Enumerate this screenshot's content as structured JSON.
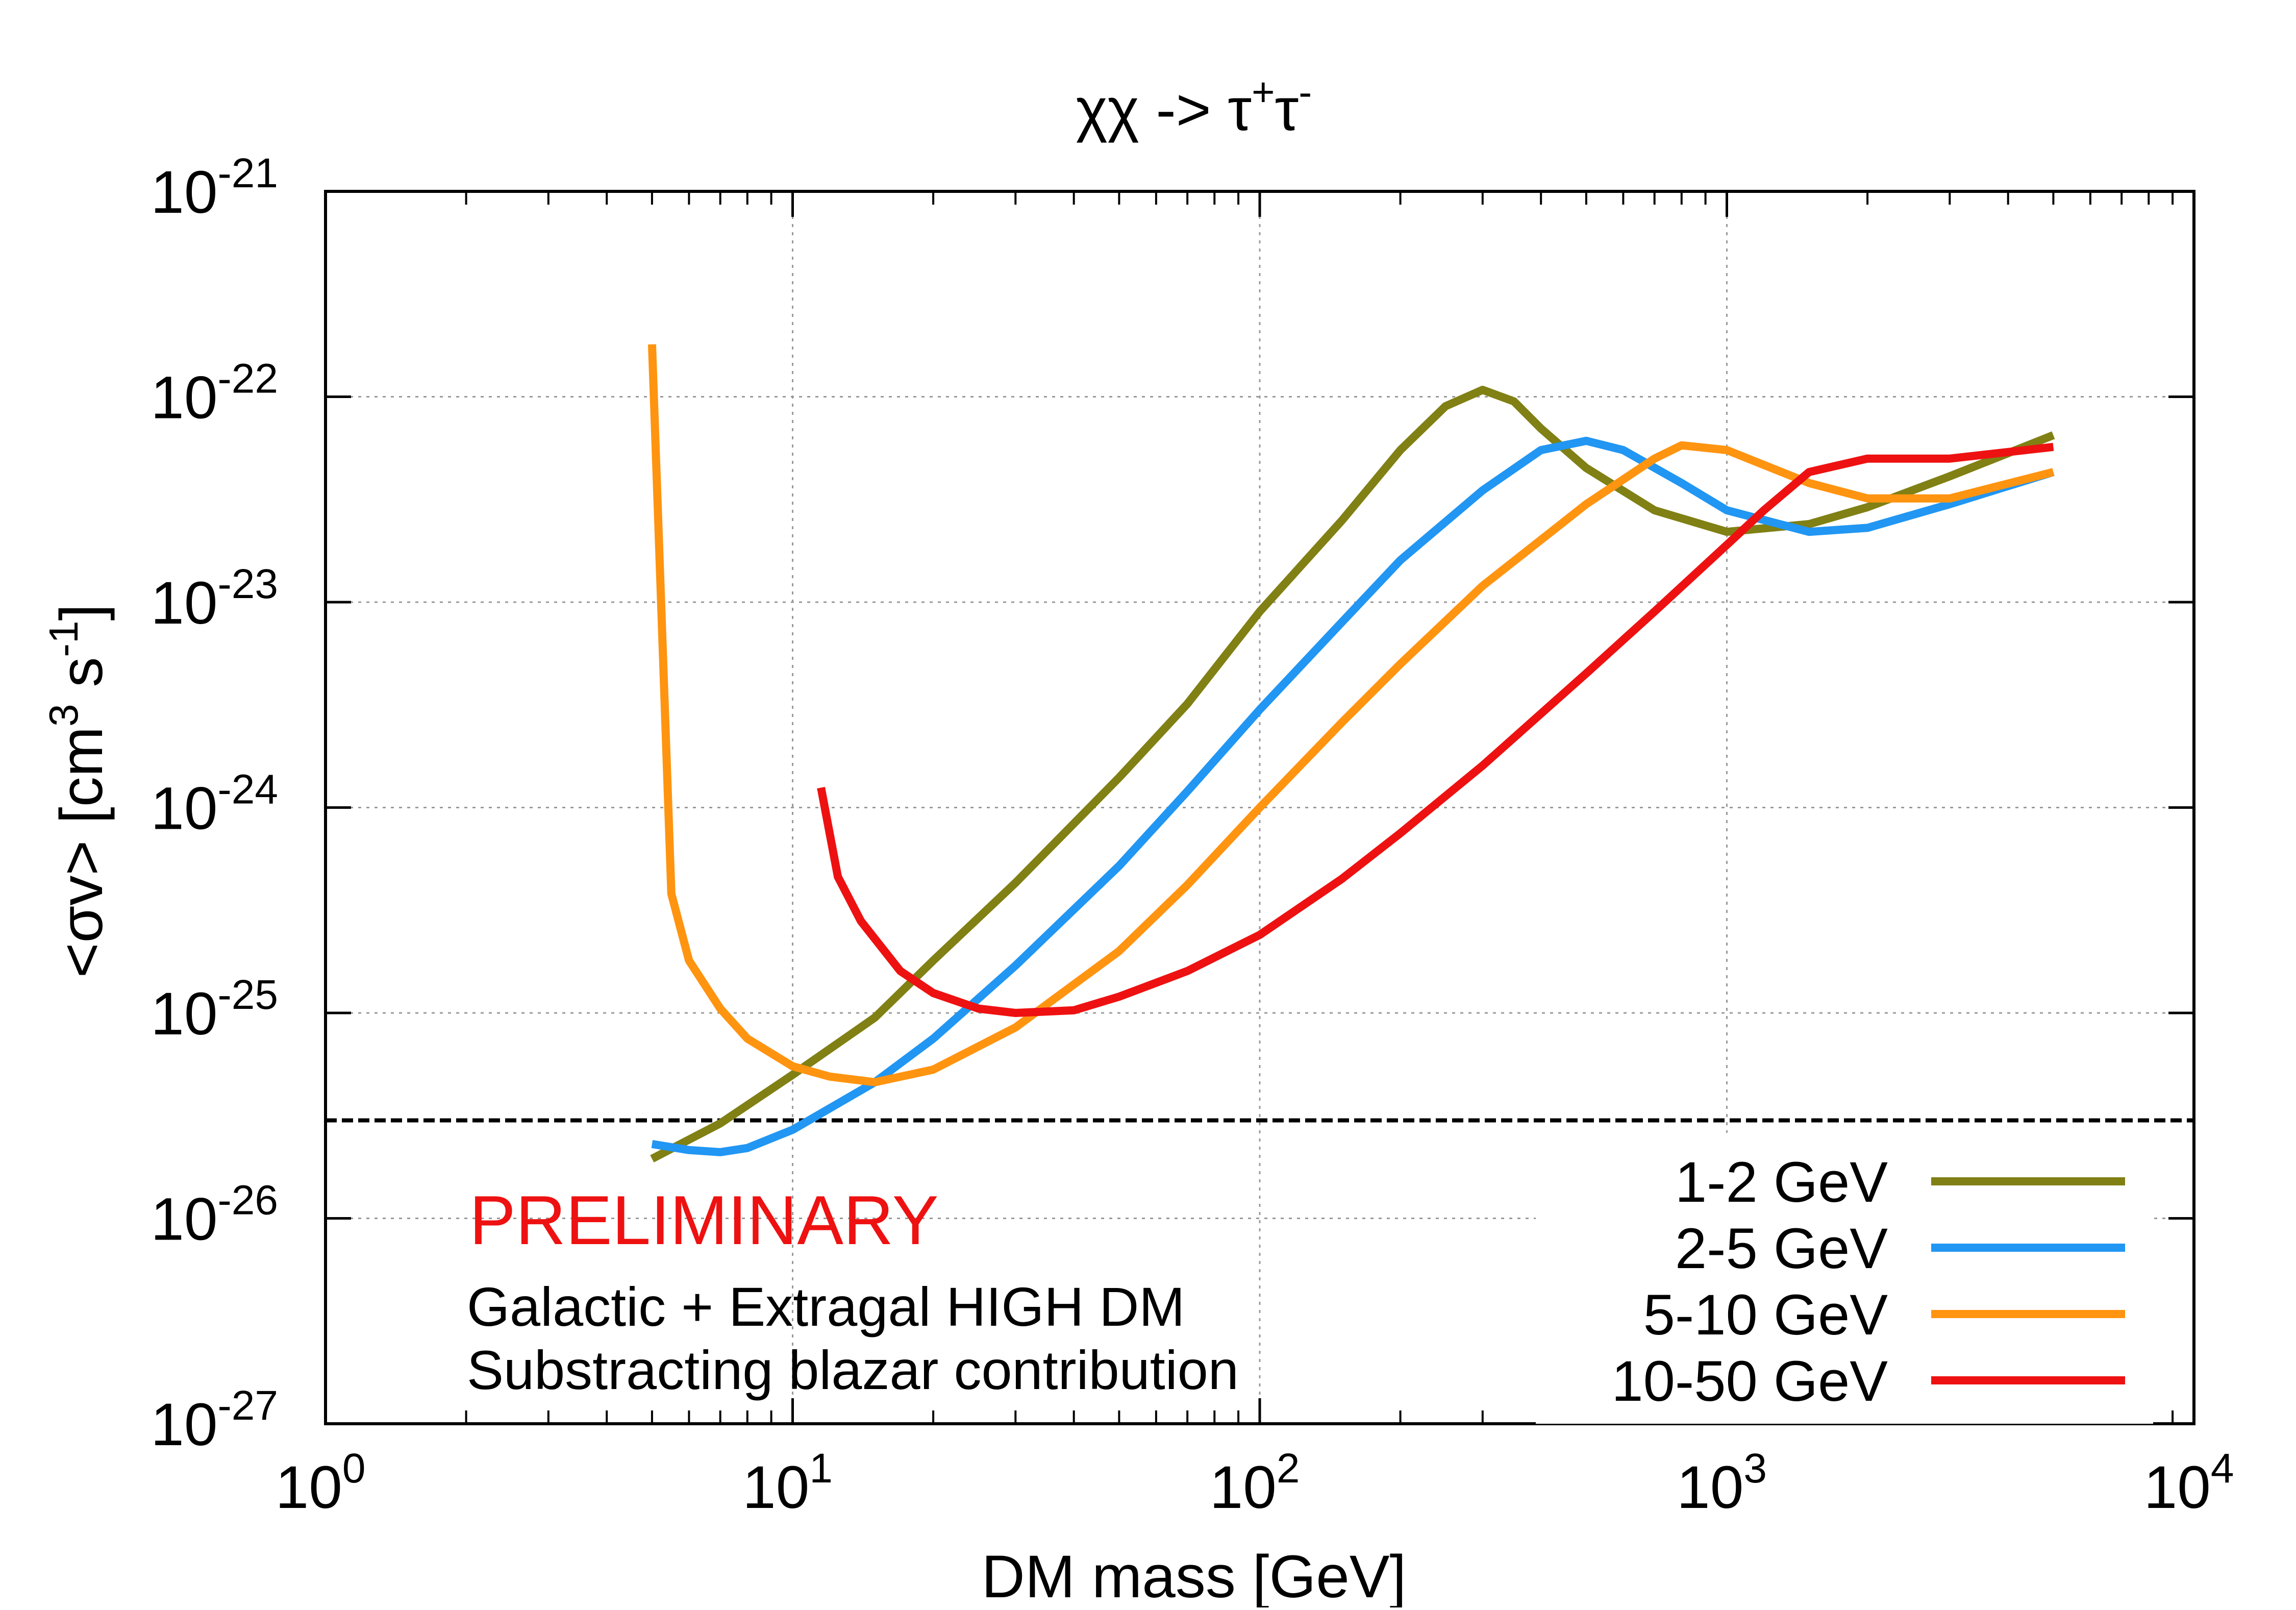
{
  "chart_data": {
    "type": "line",
    "title": "χχ -> τ⁺τ⁻",
    "title_parts": {
      "base": "χχ -> τ",
      "sup1": "+",
      "mid": "τ",
      "sup2": "-"
    },
    "xlabel": "DM mass [GeV]",
    "ylabel": "<σv> [cm³ s⁻¹]",
    "ylabel_parts": {
      "a": "<σv> [cm",
      "sup1": "3",
      "b": " s",
      "sup2": "-1",
      "c": "]"
    },
    "x_scale": "log",
    "y_scale": "log",
    "xlim": [
      1,
      10000
    ],
    "ylim": [
      1e-27,
      1e-21
    ],
    "grid": true,
    "legend_position": "bottom-right",
    "x_ticks": [
      {
        "value": 1,
        "base": "10",
        "exp": "0"
      },
      {
        "value": 10,
        "base": "10",
        "exp": "1"
      },
      {
        "value": 100,
        "base": "10",
        "exp": "2"
      },
      {
        "value": 1000,
        "base": "10",
        "exp": "3"
      },
      {
        "value": 10000,
        "base": "10",
        "exp": "4"
      }
    ],
    "y_ticks": [
      {
        "value": 1e-27,
        "base": "10",
        "exp": "-27"
      },
      {
        "value": 1e-26,
        "base": "10",
        "exp": "-26"
      },
      {
        "value": 1e-25,
        "base": "10",
        "exp": "-25"
      },
      {
        "value": 1e-24,
        "base": "10",
        "exp": "-24"
      },
      {
        "value": 1e-23,
        "base": "10",
        "exp": "-23"
      },
      {
        "value": 1e-22,
        "base": "10",
        "exp": "-22"
      },
      {
        "value": 1e-21,
        "base": "10",
        "exp": "-21"
      }
    ],
    "reference_line": {
      "y": 3e-26,
      "color": "#000000",
      "style": "dashed"
    },
    "annotations": {
      "preliminary": "PRELIMINARY",
      "preliminary_color": "#ee1111",
      "line1": "Galactic + Extragal HIGH DM",
      "line2": "Substracting blazar contribution"
    },
    "series": [
      {
        "name": "1-2 GeV",
        "color": "#808014",
        "points": [
          [
            5,
            1.95e-26
          ],
          [
            7,
            2.9e-26
          ],
          [
            10,
            5e-26
          ],
          [
            15,
            9.5e-26
          ],
          [
            20,
            1.8e-25
          ],
          [
            30,
            4.3e-25
          ],
          [
            50,
            1.4e-24
          ],
          [
            70,
            3.2e-24
          ],
          [
            100,
            9e-24
          ],
          [
            150,
            2.5e-23
          ],
          [
            200,
            5.5e-23
          ],
          [
            250,
            9e-23
          ],
          [
            300,
            1.08e-22
          ],
          [
            350,
            9.5e-23
          ],
          [
            400,
            7e-23
          ],
          [
            500,
            4.5e-23
          ],
          [
            700,
            2.8e-23
          ],
          [
            1000,
            2.2e-23
          ],
          [
            1500,
            2.4e-23
          ],
          [
            2000,
            2.9e-23
          ],
          [
            3000,
            4.1e-23
          ],
          [
            5000,
            6.5e-23
          ]
        ]
      },
      {
        "name": "2-5 GeV",
        "color": "#2196f3",
        "points": [
          [
            5,
            2.3e-26
          ],
          [
            6,
            2.15e-26
          ],
          [
            7,
            2.1e-26
          ],
          [
            8,
            2.2e-26
          ],
          [
            10,
            2.7e-26
          ],
          [
            15,
            4.6e-26
          ],
          [
            20,
            7.5e-26
          ],
          [
            30,
            1.7e-25
          ],
          [
            50,
            5.2e-25
          ],
          [
            70,
            1.2e-24
          ],
          [
            100,
            3e-24
          ],
          [
            150,
            8e-24
          ],
          [
            200,
            1.6e-23
          ],
          [
            300,
            3.5e-23
          ],
          [
            400,
            5.5e-23
          ],
          [
            500,
            6.1e-23
          ],
          [
            600,
            5.5e-23
          ],
          [
            800,
            3.8e-23
          ],
          [
            1000,
            2.8e-23
          ],
          [
            1500,
            2.2e-23
          ],
          [
            2000,
            2.3e-23
          ],
          [
            3000,
            3e-23
          ],
          [
            5000,
            4.3e-23
          ]
        ]
      },
      {
        "name": "5-10 GeV",
        "color": "#ff9410",
        "points": [
          [
            5,
            1.8e-22
          ],
          [
            5.5,
            3.8e-25
          ],
          [
            6,
            1.8e-25
          ],
          [
            7,
            1.05e-25
          ],
          [
            8,
            7.5e-26
          ],
          [
            10,
            5.5e-26
          ],
          [
            12,
            4.9e-26
          ],
          [
            15,
            4.6e-26
          ],
          [
            20,
            5.3e-26
          ],
          [
            30,
            8.5e-26
          ],
          [
            50,
            2e-25
          ],
          [
            70,
            4.2e-25
          ],
          [
            100,
            1e-24
          ],
          [
            150,
            2.6e-24
          ],
          [
            200,
            5e-24
          ],
          [
            300,
            1.2e-23
          ],
          [
            500,
            3e-23
          ],
          [
            700,
            5e-23
          ],
          [
            800,
            5.8e-23
          ],
          [
            1000,
            5.5e-23
          ],
          [
            1500,
            3.8e-23
          ],
          [
            2000,
            3.2e-23
          ],
          [
            3000,
            3.2e-23
          ],
          [
            5000,
            4.3e-23
          ]
        ]
      },
      {
        "name": "10-50 GeV",
        "color": "#ee1111",
        "points": [
          [
            11.5,
            1.25e-24
          ],
          [
            12.5,
            4.6e-25
          ],
          [
            14,
            2.8e-25
          ],
          [
            17,
            1.6e-25
          ],
          [
            20,
            1.25e-25
          ],
          [
            25,
            1.05e-25
          ],
          [
            30,
            1e-25
          ],
          [
            40,
            1.03e-25
          ],
          [
            50,
            1.2e-25
          ],
          [
            70,
            1.6e-25
          ],
          [
            100,
            2.4e-25
          ],
          [
            150,
            4.5e-25
          ],
          [
            200,
            7.5e-25
          ],
          [
            300,
            1.6e-24
          ],
          [
            500,
            4.5e-24
          ],
          [
            700,
            9e-24
          ],
          [
            1000,
            1.9e-23
          ],
          [
            1200,
            2.8e-23
          ],
          [
            1500,
            4.3e-23
          ],
          [
            2000,
            5e-23
          ],
          [
            3000,
            5e-23
          ],
          [
            5000,
            5.7e-23
          ]
        ]
      }
    ]
  }
}
